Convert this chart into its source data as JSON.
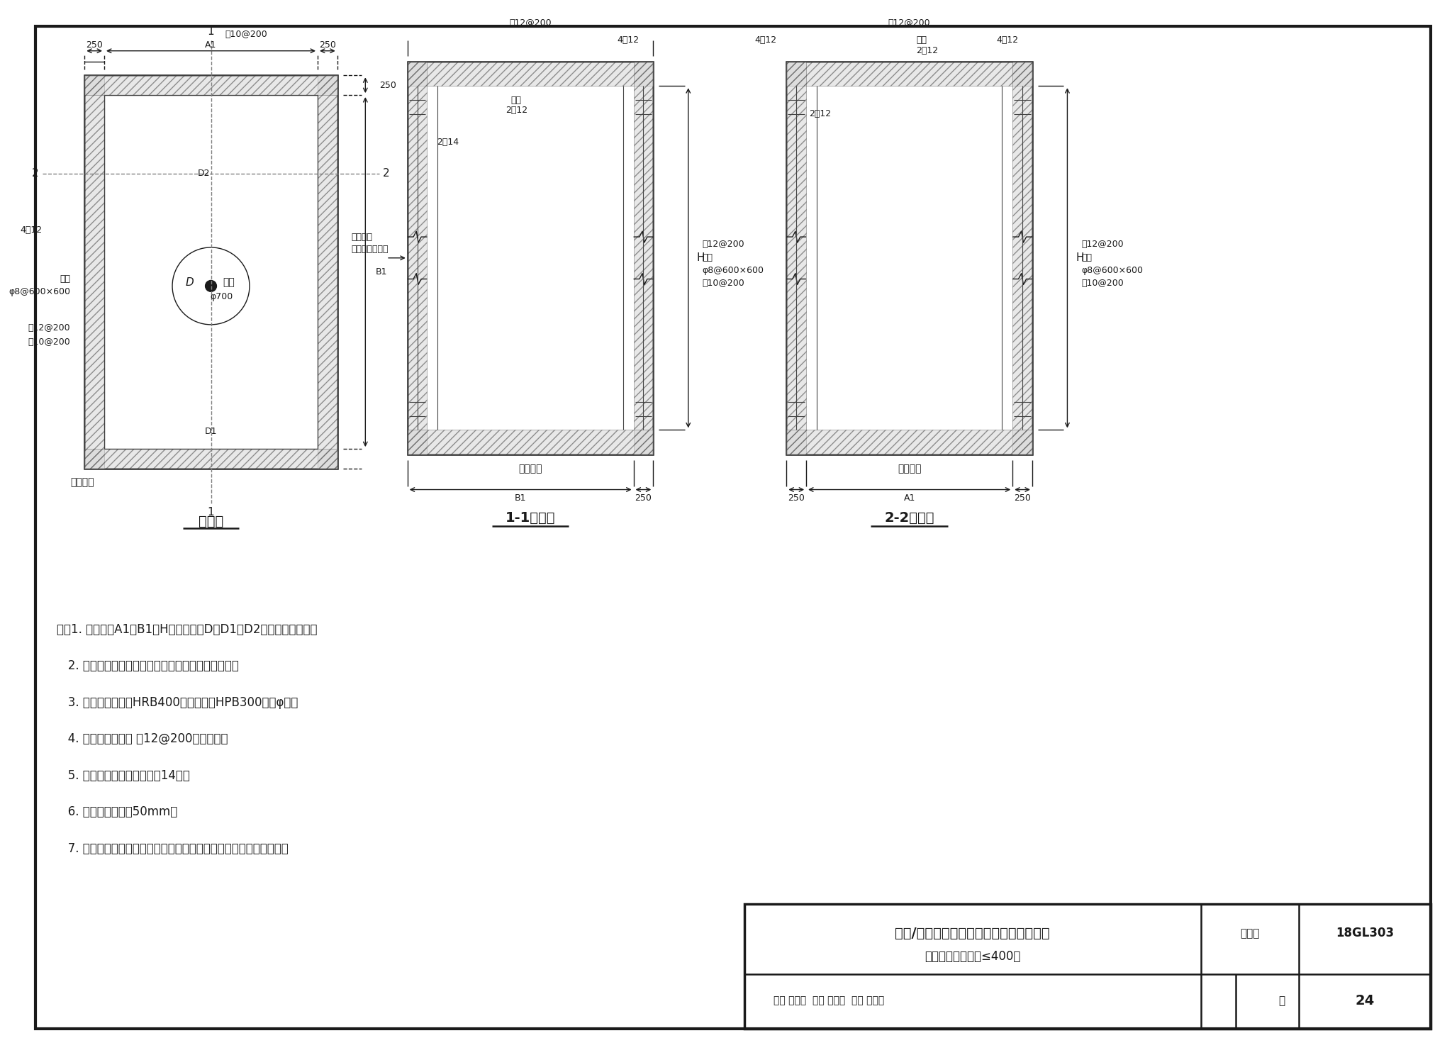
{
  "bg_color": "#f0f0f0",
  "line_color": "#1a1a1a",
  "title": "三通/四通混凝土竖槽式跌水井结构配筋图\n（廊内，支管管径≤400）",
  "atlas_no": "18GL303",
  "page": "24",
  "notes": [
    "注：1. 图中尺寸A1、B1、H及孔洞尺寸D、D1、D2由工艺设计确定。",
    "   2. 混凝土强度等级及钢筋锚固长度同管廊主体结构。",
    "   3. 钢筋强度等级：HRB400级（呂）、HPB300级（φ）。",
    "   4. 检查井顶板配筋 呂12@200双层双向。",
    "   5. 侧壁洞孔加强大样详见第14页。",
    "   6. 钢筋保护层厚度50mm。",
    "   7. 检查井结构应根据管廊主体结构的受力情况与管廊结构可靠连接。"
  ],
  "review_info": "审核 唐明雄  校对 王宏鑫  设计 陈军良  页  24"
}
